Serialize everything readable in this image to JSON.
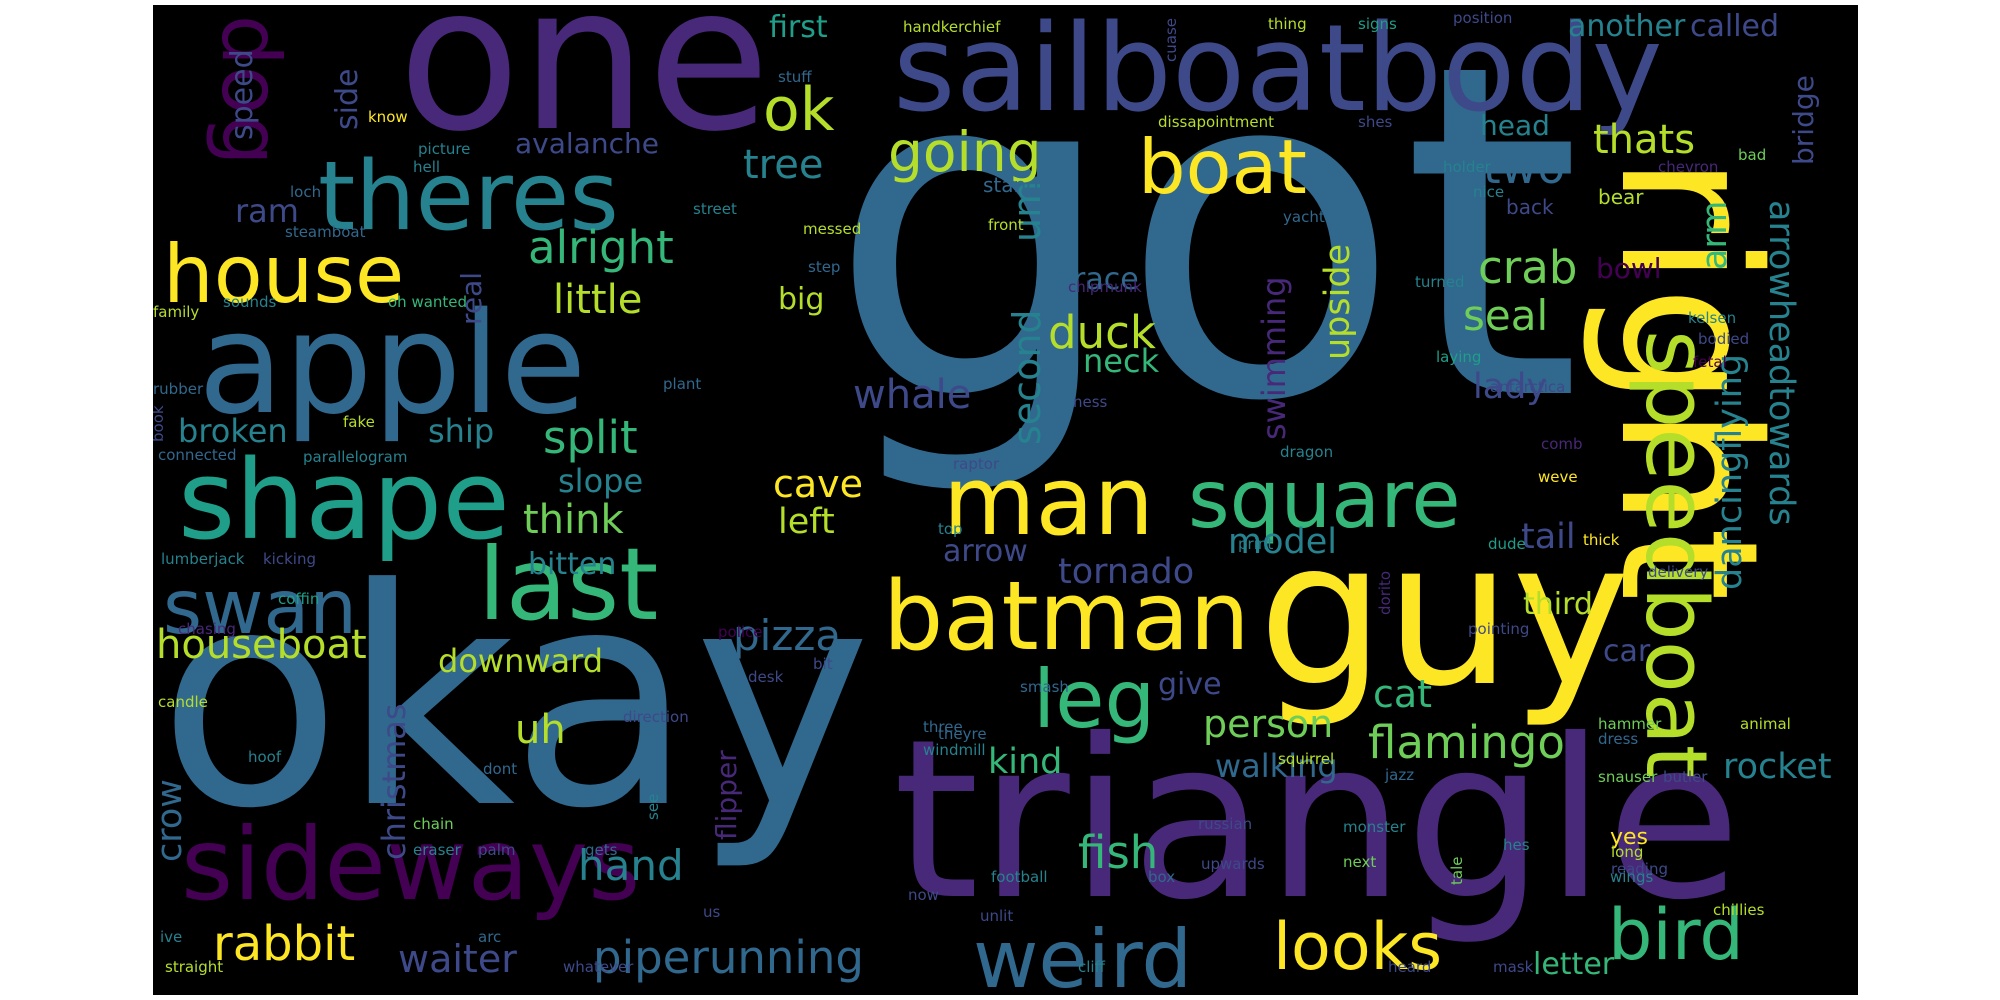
{
  "palette": {
    "background": "#000000",
    "frame": "#ffffff",
    "colormap": "viridis",
    "colors": [
      "#440154",
      "#482878",
      "#3e4989",
      "#31688e",
      "#26828e",
      "#1f9e89",
      "#35b779",
      "#6ece58",
      "#b5de2b",
      "#fde725"
    ]
  },
  "words": [
    {
      "text": "got",
      "color": "#31688e"
    },
    {
      "text": "okay",
      "color": "#31688e"
    },
    {
      "text": "one",
      "color": "#482878"
    },
    {
      "text": "triangle",
      "color": "#482878"
    },
    {
      "text": "sailboatbody",
      "color": "#3e4989"
    },
    {
      "text": "guy",
      "color": "#fde725"
    },
    {
      "text": "right",
      "color": "#fde725"
    },
    {
      "text": "apple",
      "color": "#31688e"
    },
    {
      "text": "sideways",
      "color": "#440154"
    },
    {
      "text": "batman",
      "color": "#fde725"
    },
    {
      "text": "shape",
      "color": "#1f9e89"
    },
    {
      "text": "theres",
      "color": "#26828e"
    },
    {
      "text": "last",
      "color": "#35b779"
    },
    {
      "text": "man",
      "color": "#fde725"
    },
    {
      "text": "speedboat",
      "color": "#b5de2b"
    },
    {
      "text": "square",
      "color": "#35b779"
    },
    {
      "text": "weird",
      "color": "#31688e"
    },
    {
      "text": "leg",
      "color": "#35b779"
    },
    {
      "text": "boat",
      "color": "#fde725"
    },
    {
      "text": "house",
      "color": "#fde725"
    },
    {
      "text": "swan",
      "color": "#31688e"
    },
    {
      "text": "dog",
      "color": "#440154"
    },
    {
      "text": "looks",
      "color": "#fde725"
    },
    {
      "text": "bird",
      "color": "#35b779"
    },
    {
      "text": "going",
      "color": "#b5de2b"
    },
    {
      "text": "ok",
      "color": "#b5de2b"
    },
    {
      "text": "arrowheadtowards",
      "color": "#26828e"
    },
    {
      "text": "piperunning",
      "color": "#31688e"
    },
    {
      "text": "flamingo",
      "color": "#6ece58"
    },
    {
      "text": "houseboat",
      "color": "#b5de2b"
    },
    {
      "text": "pizza",
      "color": "#31688e"
    },
    {
      "text": "alright",
      "color": "#35b779"
    },
    {
      "text": "split",
      "color": "#35b779"
    },
    {
      "text": "duck",
      "color": "#b5de2b"
    },
    {
      "text": "crab",
      "color": "#6ece58"
    },
    {
      "text": "seal",
      "color": "#6ece58"
    },
    {
      "text": "two",
      "color": "#31688e"
    },
    {
      "text": "thats",
      "color": "#b5de2b"
    },
    {
      "text": "little",
      "color": "#b5de2b"
    },
    {
      "text": "rabbit",
      "color": "#fde725"
    },
    {
      "text": "fish",
      "color": "#35b779"
    },
    {
      "text": "dancingflying",
      "color": "#26828e"
    },
    {
      "text": "person",
      "color": "#6ece58"
    },
    {
      "text": "cat",
      "color": "#35b779"
    },
    {
      "text": "upside",
      "color": "#b5de2b"
    },
    {
      "text": "second",
      "color": "#26828e"
    },
    {
      "text": "um",
      "color": "#26828e"
    },
    {
      "text": "think",
      "color": "#6ece58"
    },
    {
      "text": "whale",
      "color": "#3e4989"
    },
    {
      "text": "hand",
      "color": "#26828e"
    },
    {
      "text": "waiter",
      "color": "#3e4989"
    },
    {
      "text": "cave",
      "color": "#fde725"
    },
    {
      "text": "left",
      "color": "#b5de2b"
    },
    {
      "text": "tree",
      "color": "#26828e"
    },
    {
      "text": "arm",
      "color": "#35b779"
    },
    {
      "text": "swimming",
      "color": "#482878"
    },
    {
      "text": "model",
      "color": "#26828e"
    },
    {
      "text": "lady",
      "color": "#3e4989"
    },
    {
      "text": "tail",
      "color": "#3e4989"
    },
    {
      "text": "kind",
      "color": "#35b779"
    },
    {
      "text": "crow",
      "color": "#31688e"
    },
    {
      "text": "tornado",
      "color": "#3e4989"
    },
    {
      "text": "rocket",
      "color": "#26828e"
    },
    {
      "text": "christmas",
      "color": "#3e4989"
    },
    {
      "text": "downward",
      "color": "#b5de2b"
    },
    {
      "text": "slope",
      "color": "#26828e"
    },
    {
      "text": "broken",
      "color": "#26828e"
    },
    {
      "text": "ship",
      "color": "#26828e"
    },
    {
      "text": "walking",
      "color": "#31688e"
    },
    {
      "text": "letter",
      "color": "#35b779"
    },
    {
      "text": "neck",
      "color": "#35b779"
    },
    {
      "text": "race",
      "color": "#31688e"
    },
    {
      "text": "bitten",
      "color": "#26828e"
    },
    {
      "text": "avalanche",
      "color": "#3e4989"
    },
    {
      "text": "ram",
      "color": "#3e4989"
    },
    {
      "text": "speed",
      "color": "#3e4989"
    },
    {
      "text": "side",
      "color": "#3e4989"
    },
    {
      "text": "first",
      "color": "#1f9e89"
    },
    {
      "text": "another",
      "color": "#26828e"
    },
    {
      "text": "called",
      "color": "#3e4989"
    },
    {
      "text": "head",
      "color": "#26828e"
    },
    {
      "text": "third",
      "color": "#b5de2b"
    },
    {
      "text": "arrow",
      "color": "#3e4989"
    },
    {
      "text": "real",
      "color": "#3e4989"
    },
    {
      "text": "big",
      "color": "#b5de2b"
    },
    {
      "text": "bowl",
      "color": "#440154"
    },
    {
      "text": "bridge",
      "color": "#3e4989"
    },
    {
      "text": "uh",
      "color": "#b5de2b"
    },
    {
      "text": "give",
      "color": "#3e4989"
    },
    {
      "text": "car",
      "color": "#3e4989"
    },
    {
      "text": "flipper",
      "color": "#482878"
    },
    {
      "text": "yes",
      "color": "#fde725"
    },
    {
      "text": "standing",
      "color": "#31688e"
    },
    {
      "text": "back",
      "color": "#3e4989"
    },
    {
      "text": "bear",
      "color": "#b5de2b"
    },
    {
      "text": "handkerchief",
      "color": "#b5de2b"
    },
    {
      "text": "thing",
      "color": "#b5de2b"
    },
    {
      "text": "signs",
      "color": "#1f9e89"
    },
    {
      "text": "position",
      "color": "#3e4989"
    },
    {
      "text": "stuff",
      "color": "#31688e"
    },
    {
      "text": "cuase",
      "color": "#3e4989"
    },
    {
      "text": "know",
      "color": "#fde725"
    },
    {
      "text": "picture",
      "color": "#26828e"
    },
    {
      "text": "dissapointment",
      "color": "#b5de2b"
    },
    {
      "text": "shes",
      "color": "#3e4989"
    },
    {
      "text": "hell",
      "color": "#26828e"
    },
    {
      "text": "holder",
      "color": "#26828e"
    },
    {
      "text": "chevron",
      "color": "#482878"
    },
    {
      "text": "bad",
      "color": "#6ece58"
    },
    {
      "text": "loch",
      "color": "#31688e"
    },
    {
      "text": "street",
      "color": "#26828e"
    },
    {
      "text": "nice",
      "color": "#26828e"
    },
    {
      "text": "yacht",
      "color": "#31688e"
    },
    {
      "text": "steamboat",
      "color": "#31688e"
    },
    {
      "text": "front",
      "color": "#b5de2b"
    },
    {
      "text": "messed",
      "color": "#b5de2b"
    },
    {
      "text": "step",
      "color": "#31688e"
    },
    {
      "text": "turned",
      "color": "#26828e"
    },
    {
      "text": "family",
      "color": "#b5de2b"
    },
    {
      "text": "sounds",
      "color": "#26828e"
    },
    {
      "text": "oh wanted",
      "color": "#35b779"
    },
    {
      "text": "chipmunk",
      "color": "#482878"
    },
    {
      "text": "kelsen",
      "color": "#26828e"
    },
    {
      "text": "really",
      "color": "#31688e"
    },
    {
      "text": "bodied",
      "color": "#3e4989"
    },
    {
      "text": "fetal",
      "color": "#440154"
    },
    {
      "text": "laying",
      "color": "#1f9e89"
    },
    {
      "text": "antarctica",
      "color": "#3e4989"
    },
    {
      "text": "rubber",
      "color": "#31688e"
    },
    {
      "text": "book",
      "color": "#3e4989"
    },
    {
      "text": "plant",
      "color": "#31688e"
    },
    {
      "text": "fake",
      "color": "#b5de2b"
    },
    {
      "text": "ness",
      "color": "#3e4989"
    },
    {
      "text": "connected",
      "color": "#31688e"
    },
    {
      "text": "parallelogram",
      "color": "#26828e"
    },
    {
      "text": "dragon",
      "color": "#26828e"
    },
    {
      "text": "comb",
      "color": "#482878"
    },
    {
      "text": "raptor",
      "color": "#3e4989"
    },
    {
      "text": "weve",
      "color": "#fde725"
    },
    {
      "text": "top",
      "color": "#26828e"
    },
    {
      "text": "print",
      "color": "#26828e"
    },
    {
      "text": "dude",
      "color": "#1f9e89"
    },
    {
      "text": "thick",
      "color": "#fde725"
    },
    {
      "text": "lumberjack",
      "color": "#26828e"
    },
    {
      "text": "kicking",
      "color": "#3e4989"
    },
    {
      "text": "delivery",
      "color": "#3e4989"
    },
    {
      "text": "dorito",
      "color": "#482878"
    },
    {
      "text": "coffin",
      "color": "#1f9e89"
    },
    {
      "text": "pointing",
      "color": "#3e4989"
    },
    {
      "text": "chasing",
      "color": "#482878"
    },
    {
      "text": "police",
      "color": "#440154"
    },
    {
      "text": "bit",
      "color": "#3e4989"
    },
    {
      "text": "smash",
      "color": "#31688e"
    },
    {
      "text": "desk",
      "color": "#3e4989"
    },
    {
      "text": "candle",
      "color": "#b5de2b"
    },
    {
      "text": "direction",
      "color": "#3e4989"
    },
    {
      "text": "hammer",
      "color": "#6ece58"
    },
    {
      "text": "animal",
      "color": "#b5de2b"
    },
    {
      "text": "dress",
      "color": "#31688e"
    },
    {
      "text": "three",
      "color": "#31688e"
    },
    {
      "text": "theyre",
      "color": "#31688e"
    },
    {
      "text": "windmill",
      "color": "#26828e"
    },
    {
      "text": "hoof",
      "color": "#26828e"
    },
    {
      "text": "squirrel",
      "color": "#b5de2b"
    },
    {
      "text": "butler",
      "color": "#3e4989"
    },
    {
      "text": "dont",
      "color": "#31688e"
    },
    {
      "text": "jazz",
      "color": "#31688e"
    },
    {
      "text": "snauser",
      "color": "#6ece58"
    },
    {
      "text": "see",
      "color": "#26828e"
    },
    {
      "text": "monster",
      "color": "#26828e"
    },
    {
      "text": "chain",
      "color": "#6ece58"
    },
    {
      "text": "russian",
      "color": "#3e4989"
    },
    {
      "text": "eraser",
      "color": "#26828e"
    },
    {
      "text": "palm",
      "color": "#3e4989"
    },
    {
      "text": "gets",
      "color": "#31688e"
    },
    {
      "text": "long",
      "color": "#b5de2b"
    },
    {
      "text": "next",
      "color": "#6ece58"
    },
    {
      "text": "hes",
      "color": "#26828e"
    },
    {
      "text": "upwards",
      "color": "#3e4989"
    },
    {
      "text": "reading",
      "color": "#3e4989"
    },
    {
      "text": "tale",
      "color": "#6ece58"
    },
    {
      "text": "football",
      "color": "#26828e"
    },
    {
      "text": "box",
      "color": "#31688e"
    },
    {
      "text": "wings",
      "color": "#26828e"
    },
    {
      "text": "now",
      "color": "#3e4989"
    },
    {
      "text": "us",
      "color": "#3e4989"
    },
    {
      "text": "unlit",
      "color": "#3e4989"
    },
    {
      "text": "chillies",
      "color": "#b5de2b"
    },
    {
      "text": "ive",
      "color": "#26828e"
    },
    {
      "text": "arc",
      "color": "#31688e"
    },
    {
      "text": "straight",
      "color": "#b5de2b"
    },
    {
      "text": "whatever",
      "color": "#3e4989"
    },
    {
      "text": "cliff",
      "color": "#26828e"
    },
    {
      "text": "heard",
      "color": "#3e4989"
    },
    {
      "text": "mask",
      "color": "#3e4989"
    }
  ]
}
